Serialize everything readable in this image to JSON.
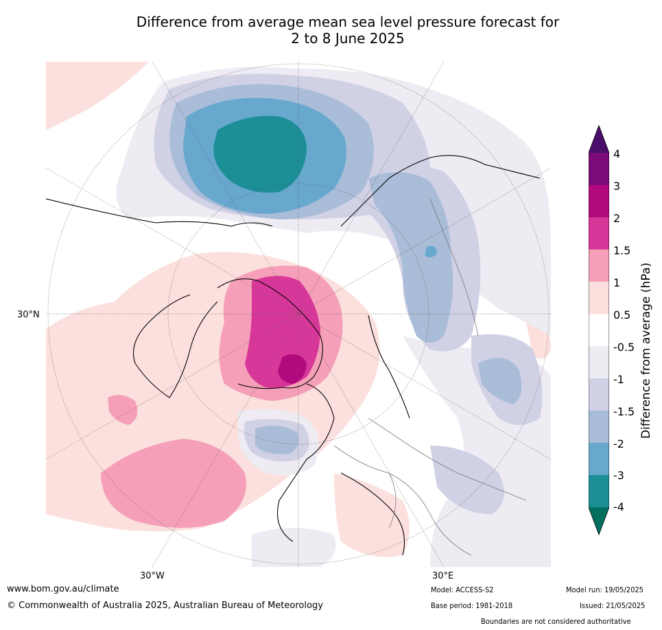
{
  "title_line1": "Difference from average mean sea level pressure forecast for",
  "title_line2": "2 to 8 June 2025",
  "lat_label": "30°N",
  "lon_labels": {
    "west": "30°W",
    "east": "30°E"
  },
  "colorbar": {
    "title": "Difference from average (hPa)",
    "labels": [
      "4",
      "3",
      "2",
      "1.5",
      "1",
      "0.5",
      "-0.5",
      "-1",
      "-1.5",
      "-2",
      "-3",
      "-4"
    ],
    "colors": {
      "gt4": "#4a0e6b",
      "3_to_4": "#7c0a7a",
      "2_to_3": "#b3097e",
      "1.5_to_2": "#d8379a",
      "1_to_1.5": "#f5a0b8",
      "0.5_to_1": "#fbe0dd",
      "-0.5_to_0.5": "#ffffff",
      "-1_to_-0.5": "#eeebf3",
      "-1.5_to_-1": "#d1d1e6",
      "-2_to_-1.5": "#a9bcd8",
      "-3_to_-2": "#68a8cf",
      "-4_to_-3": "#1c8e96",
      "lt-4": "#03705f"
    }
  },
  "footer": {
    "website": "www.bom.gov.au/climate",
    "copyright": "© Commonwealth of Australia 2025, Australian Bureau of Meteorology",
    "model": "Model: ACCESS-S2",
    "base_period": "Base period: 1981-2018",
    "model_run": "Model run: 19/05/2025",
    "issued": "Issued: 21/05/2025",
    "disclaimer": "Boundaries are not considered authoritative"
  }
}
